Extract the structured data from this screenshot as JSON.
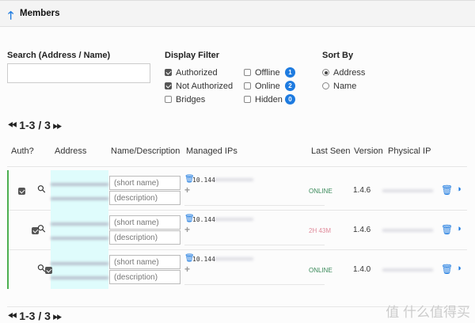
{
  "header": {
    "title": "Members",
    "icon": "arrow-up-icon"
  },
  "search": {
    "label": "Search (Address / Name)",
    "value": "",
    "placeholder": ""
  },
  "display_filter": {
    "label": "Display Filter",
    "left": [
      {
        "label": "Authorized",
        "checked": true
      },
      {
        "label": "Not Authorized",
        "checked": true
      },
      {
        "label": "Bridges",
        "checked": false
      }
    ],
    "right": [
      {
        "label": "Offline",
        "checked": false,
        "count": "1"
      },
      {
        "label": "Online",
        "checked": false,
        "count": "2"
      },
      {
        "label": "Hidden",
        "checked": false,
        "count": "0"
      }
    ]
  },
  "sort_by": {
    "label": "Sort By",
    "options": [
      {
        "label": "Address",
        "selected": true
      },
      {
        "label": "Name",
        "selected": false
      }
    ]
  },
  "pager": {
    "text": "1-3 / 3"
  },
  "table": {
    "headers": [
      "Auth?",
      "Address",
      "Name/Description",
      "Managed IPs",
      "Last Seen",
      "Version",
      "Physical IP"
    ],
    "name_placeholder": "(short name)",
    "desc_placeholder": "(description)",
    "rows": [
      {
        "auth": true,
        "ip_prefix": "10.144",
        "last_seen": "ONLINE",
        "status": "online",
        "version": "1.4.6"
      },
      {
        "auth": true,
        "ip_prefix": "10.144",
        "last_seen": "2H 43M",
        "status": "offline",
        "version": "1.4.6"
      },
      {
        "auth": true,
        "ip_prefix": "10.144",
        "last_seen": "ONLINE",
        "status": "online",
        "version": "1.4.0"
      }
    ]
  },
  "colors": {
    "accent": "#1e7be0",
    "online": "#3a8a5a",
    "offline": "#e08a9a",
    "authorized_bar": "#4caf50",
    "address_bg": "#dffcfc"
  },
  "watermark": "值 什么值得买"
}
